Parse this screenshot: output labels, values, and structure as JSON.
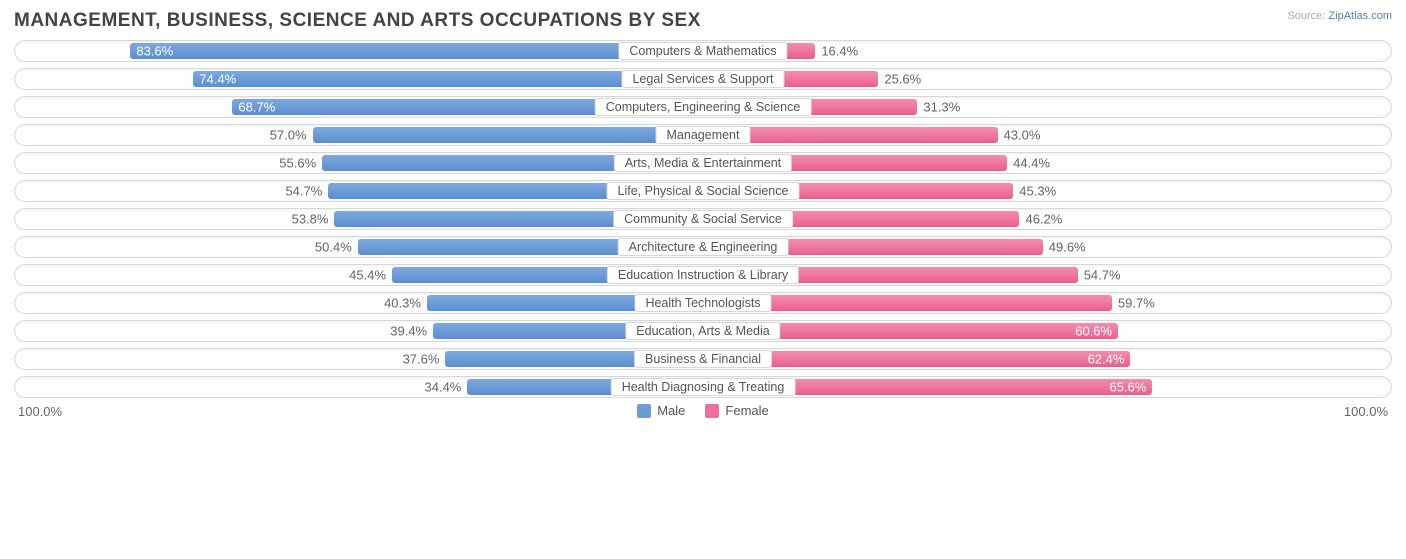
{
  "title": "MANAGEMENT, BUSINESS, SCIENCE AND ARTS OCCUPATIONS BY SEX",
  "source_label": "Source:",
  "source_value": "ZipAtlas.com",
  "colors": {
    "male_bar": "#6d9bd6",
    "female_bar": "#ee6f9b",
    "track_border": "#d8d8d8",
    "text": "#666666",
    "background": "#ffffff",
    "inside_text": "#ffffff"
  },
  "axis": {
    "left": "100.0%",
    "right": "100.0%"
  },
  "legend": {
    "male": "Male",
    "female": "Female"
  },
  "label_threshold_inside": 60,
  "rows": [
    {
      "label": "Computers & Mathematics",
      "male": 83.6,
      "female": 16.4
    },
    {
      "label": "Legal Services & Support",
      "male": 74.4,
      "female": 25.6
    },
    {
      "label": "Computers, Engineering & Science",
      "male": 68.7,
      "female": 31.3
    },
    {
      "label": "Management",
      "male": 57.0,
      "female": 43.0
    },
    {
      "label": "Arts, Media & Entertainment",
      "male": 55.6,
      "female": 44.4
    },
    {
      "label": "Life, Physical & Social Science",
      "male": 54.7,
      "female": 45.3
    },
    {
      "label": "Community & Social Service",
      "male": 53.8,
      "female": 46.2
    },
    {
      "label": "Architecture & Engineering",
      "male": 50.4,
      "female": 49.6
    },
    {
      "label": "Education Instruction & Library",
      "male": 45.4,
      "female": 54.7
    },
    {
      "label": "Health Technologists",
      "male": 40.3,
      "female": 59.7
    },
    {
      "label": "Education, Arts & Media",
      "male": 39.4,
      "female": 60.6
    },
    {
      "label": "Business & Financial",
      "male": 37.6,
      "female": 62.4
    },
    {
      "label": "Health Diagnosing & Treating",
      "male": 34.4,
      "female": 65.6
    }
  ]
}
